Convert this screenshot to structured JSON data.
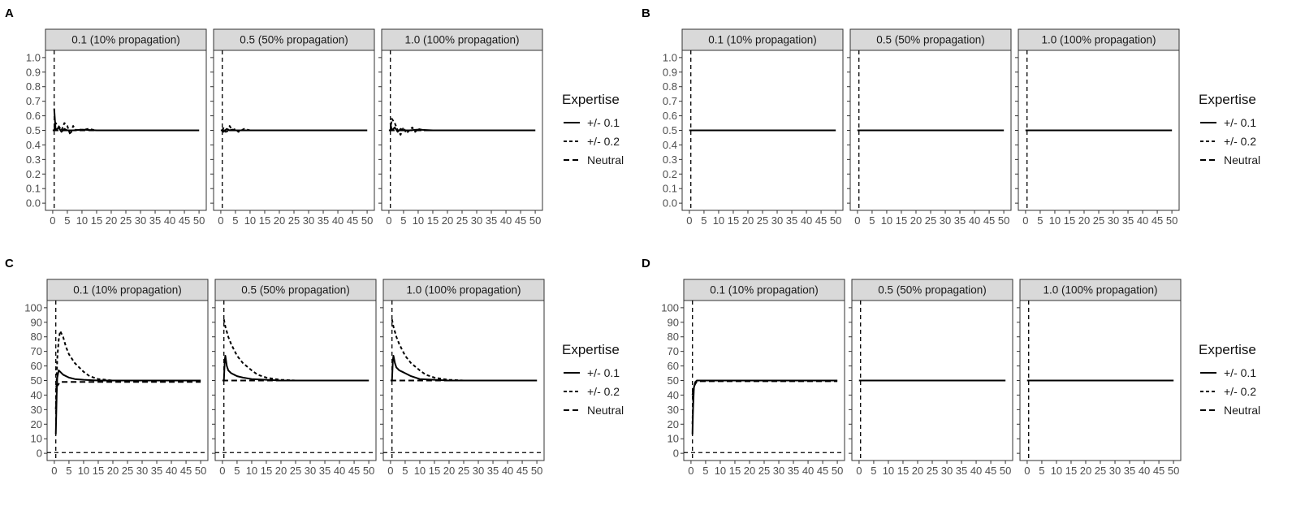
{
  "facet_strips": [
    "0.1 (10% propagation)",
    "0.5 (50% propagation)",
    "1.0 (100% propagation)"
  ],
  "legend": {
    "title": "Expertise",
    "entries": [
      {
        "label": "+/- 0.1",
        "linetype": "solid"
      },
      {
        "label": "+/- 0.2",
        "linetype": "dotted"
      },
      {
        "label": "Neutral",
        "linetype": "dashed"
      }
    ]
  },
  "colors": {
    "line": "#000000",
    "strip_fill": "#d9d9d9",
    "panel_border": "#333333",
    "tick_text": "#4d4d4d"
  },
  "chart_data": [
    {
      "id": "A",
      "type": "line",
      "panel_label": "A",
      "xlim": [
        0,
        50
      ],
      "ylim": [
        0,
        1.0
      ],
      "xticks": [
        0,
        5,
        10,
        15,
        20,
        25,
        30,
        35,
        40,
        45,
        50
      ],
      "yticks": [
        0.0,
        0.1,
        0.2,
        0.3,
        0.4,
        0.5,
        0.6,
        0.7,
        0.8,
        0.9,
        1.0
      ],
      "ytick_decimals": 1,
      "facets": [
        {
          "strip": "0.1 (10% propagation)",
          "vline_x": 0.5,
          "hline_y": null,
          "series": [
            {
              "name": "+/- 0.1",
              "linetype": "solid",
              "x": [
                0.5,
                1,
                2,
                3,
                4,
                5,
                7,
                10,
                15,
                20,
                30,
                40,
                50
              ],
              "y": [
                0.65,
                0.5,
                0.52,
                0.49,
                0.51,
                0.5,
                0.5,
                0.505,
                0.5,
                0.5,
                0.5,
                0.5,
                0.5
              ]
            },
            {
              "name": "+/- 0.2",
              "linetype": "dotted",
              "x": [
                0.5,
                1,
                2,
                3,
                4,
                5,
                6,
                7,
                8,
                9,
                10,
                12,
                15,
                20,
                30,
                40,
                50
              ],
              "y": [
                0.5,
                0.55,
                0.53,
                0.5,
                0.55,
                0.53,
                0.47,
                0.53,
                0.5,
                0.51,
                0.5,
                0.51,
                0.5,
                0.5,
                0.5,
                0.5,
                0.5
              ]
            },
            {
              "name": "Neutral",
              "linetype": "dashed",
              "x": [
                0,
                50
              ],
              "y": [
                0.5,
                0.5
              ]
            }
          ]
        },
        {
          "strip": "0.5 (50% propagation)",
          "vline_x": 0.5,
          "hline_y": null,
          "series": [
            {
              "name": "+/- 0.1",
              "linetype": "solid",
              "x": [
                0.5,
                1,
                2,
                3,
                4,
                5,
                7,
                10,
                20,
                30,
                40,
                50
              ],
              "y": [
                0.5,
                0.49,
                0.51,
                0.5,
                0.505,
                0.5,
                0.5,
                0.5,
                0.5,
                0.5,
                0.5,
                0.5
              ]
            },
            {
              "name": "+/- 0.2",
              "linetype": "dotted",
              "x": [
                0.5,
                1,
                2,
                3,
                4,
                5,
                6,
                7,
                8,
                10,
                15,
                20,
                30,
                40,
                50
              ],
              "y": [
                0.5,
                0.52,
                0.48,
                0.53,
                0.5,
                0.51,
                0.49,
                0.5,
                0.51,
                0.5,
                0.5,
                0.5,
                0.5,
                0.5,
                0.5
              ]
            },
            {
              "name": "Neutral",
              "linetype": "dashed",
              "x": [
                0,
                50
              ],
              "y": [
                0.5,
                0.5
              ]
            }
          ]
        },
        {
          "strip": "1.0 (100% propagation)",
          "vline_x": 0.5,
          "hline_y": null,
          "series": [
            {
              "name": "+/- 0.1",
              "linetype": "solid",
              "x": [
                0.5,
                1,
                2,
                3,
                4,
                5,
                7,
                10,
                15,
                20,
                30,
                40,
                50
              ],
              "y": [
                0.55,
                0.5,
                0.52,
                0.49,
                0.51,
                0.5,
                0.5,
                0.505,
                0.5,
                0.5,
                0.5,
                0.5,
                0.5
              ]
            },
            {
              "name": "+/- 0.2",
              "linetype": "dotted",
              "x": [
                0.5,
                1,
                2,
                3,
                4,
                5,
                6,
                7,
                8,
                9,
                10,
                12,
                15,
                20,
                30,
                40,
                50
              ],
              "y": [
                0.5,
                0.58,
                0.55,
                0.5,
                0.47,
                0.52,
                0.48,
                0.5,
                0.52,
                0.49,
                0.51,
                0.5,
                0.5,
                0.5,
                0.5,
                0.5,
                0.5
              ]
            },
            {
              "name": "Neutral",
              "linetype": "dashed",
              "x": [
                0,
                50
              ],
              "y": [
                0.5,
                0.5
              ]
            }
          ]
        }
      ]
    },
    {
      "id": "B",
      "type": "line",
      "panel_label": "B",
      "xlim": [
        0,
        50
      ],
      "ylim": [
        0,
        1.0
      ],
      "xticks": [
        0,
        5,
        10,
        15,
        20,
        25,
        30,
        35,
        40,
        45,
        50
      ],
      "yticks": [
        0.0,
        0.1,
        0.2,
        0.3,
        0.4,
        0.5,
        0.6,
        0.7,
        0.8,
        0.9,
        1.0
      ],
      "ytick_decimals": 1,
      "facets": [
        {
          "strip": "0.1 (10% propagation)",
          "vline_x": 0.5,
          "hline_y": null,
          "series": [
            {
              "name": "+/- 0.1",
              "linetype": "solid",
              "x": [
                0,
                50
              ],
              "y": [
                0.5,
                0.5
              ]
            },
            {
              "name": "+/- 0.2",
              "linetype": "dotted",
              "x": [
                0,
                50
              ],
              "y": [
                0.5,
                0.5
              ]
            },
            {
              "name": "Neutral",
              "linetype": "dashed",
              "x": [
                0,
                50
              ],
              "y": [
                0.5,
                0.5
              ]
            }
          ]
        },
        {
          "strip": "0.5 (50% propagation)",
          "vline_x": 0.5,
          "hline_y": null,
          "series": [
            {
              "name": "+/- 0.1",
              "linetype": "solid",
              "x": [
                0,
                50
              ],
              "y": [
                0.5,
                0.5
              ]
            },
            {
              "name": "+/- 0.2",
              "linetype": "dotted",
              "x": [
                0,
                50
              ],
              "y": [
                0.5,
                0.5
              ]
            },
            {
              "name": "Neutral",
              "linetype": "dashed",
              "x": [
                0,
                50
              ],
              "y": [
                0.5,
                0.5
              ]
            }
          ]
        },
        {
          "strip": "1.0 (100% propagation)",
          "vline_x": 0.5,
          "hline_y": null,
          "series": [
            {
              "name": "+/- 0.1",
              "linetype": "solid",
              "x": [
                0,
                50
              ],
              "y": [
                0.5,
                0.5
              ]
            },
            {
              "name": "+/- 0.2",
              "linetype": "dotted",
              "x": [
                0,
                50
              ],
              "y": [
                0.5,
                0.5
              ]
            },
            {
              "name": "Neutral",
              "linetype": "dashed",
              "x": [
                0,
                50
              ],
              "y": [
                0.5,
                0.5
              ]
            }
          ]
        }
      ]
    },
    {
      "id": "C",
      "type": "line",
      "panel_label": "C",
      "xlim": [
        0,
        50
      ],
      "ylim": [
        0,
        100
      ],
      "xticks": [
        0,
        5,
        10,
        15,
        20,
        25,
        30,
        35,
        40,
        45,
        50
      ],
      "yticks": [
        0,
        10,
        20,
        30,
        40,
        50,
        60,
        70,
        80,
        90,
        100
      ],
      "ytick_decimals": 0,
      "facets": [
        {
          "strip": "0.1 (10% propagation)",
          "vline_x": 0.5,
          "hline_y": 0.5,
          "series": [
            {
              "name": "+/- 0.1",
              "linetype": "solid",
              "x": [
                0.5,
                0.8,
                1,
                1.5,
                2,
                3,
                4,
                5,
                7,
                10,
                15,
                20,
                50
              ],
              "y": [
                13,
                40,
                52,
                57,
                56,
                54,
                53,
                52,
                51,
                50.5,
                50,
                50,
                50
              ]
            },
            {
              "name": "+/- 0.2",
              "linetype": "dotted",
              "x": [
                0.5,
                1,
                1.5,
                2,
                3,
                4,
                5,
                7,
                10,
                12,
                15,
                20,
                25,
                50
              ],
              "y": [
                30,
                65,
                78,
                84,
                80,
                73,
                68,
                62,
                56,
                53,
                51,
                50,
                50,
                50
              ]
            },
            {
              "name": "Neutral",
              "linetype": "dashed",
              "x": [
                0.5,
                2,
                50
              ],
              "y": [
                45,
                49,
                49
              ]
            }
          ]
        },
        {
          "strip": "0.5 (50% propagation)",
          "vline_x": 0.5,
          "hline_y": 0.5,
          "series": [
            {
              "name": "+/- 0.1",
              "linetype": "solid",
              "x": [
                0.5,
                0.8,
                1,
                1.5,
                2,
                3,
                4,
                5,
                7,
                10,
                15,
                20,
                50
              ],
              "y": [
                50,
                64,
                67,
                60,
                57,
                55,
                54,
                53,
                52,
                51,
                50.5,
                50,
                50
              ]
            },
            {
              "name": "+/- 0.2",
              "linetype": "dotted",
              "x": [
                0.5,
                1,
                2,
                3,
                4,
                5,
                7,
                10,
                12,
                15,
                18,
                20,
                25,
                50
              ],
              "y": [
                92,
                87,
                80,
                75,
                71,
                67,
                62,
                57,
                54,
                52,
                51,
                50.5,
                50,
                50
              ]
            },
            {
              "name": "Neutral",
              "linetype": "dashed",
              "x": [
                0,
                50
              ],
              "y": [
                50,
                50
              ]
            }
          ]
        },
        {
          "strip": "1.0 (100% propagation)",
          "vline_x": 0.5,
          "hline_y": 0.5,
          "series": [
            {
              "name": "+/- 0.1",
              "linetype": "solid",
              "x": [
                0.5,
                0.8,
                1,
                1.5,
                2,
                3,
                4,
                5,
                7,
                10,
                15,
                20,
                50
              ],
              "y": [
                50,
                64,
                67,
                62,
                59,
                57,
                56,
                55,
                53,
                51,
                50.5,
                50,
                50
              ]
            },
            {
              "name": "+/- 0.2",
              "linetype": "dotted",
              "x": [
                0.5,
                1,
                2,
                3,
                4,
                5,
                7,
                10,
                12,
                15,
                18,
                20,
                25,
                50
              ],
              "y": [
                92,
                87,
                80,
                75,
                71,
                67,
                62,
                57,
                54,
                52,
                51,
                50.5,
                50,
                50
              ]
            },
            {
              "name": "Neutral",
              "linetype": "dashed",
              "x": [
                0,
                50
              ],
              "y": [
                50,
                50
              ]
            }
          ]
        }
      ]
    },
    {
      "id": "D",
      "type": "line",
      "panel_label": "D",
      "xlim": [
        0,
        50
      ],
      "ylim": [
        0,
        100
      ],
      "xticks": [
        0,
        5,
        10,
        15,
        20,
        25,
        30,
        35,
        40,
        45,
        50
      ],
      "yticks": [
        0,
        10,
        20,
        30,
        40,
        50,
        60,
        70,
        80,
        90,
        100
      ],
      "ytick_decimals": 0,
      "facets": [
        {
          "strip": "0.1 (10% propagation)",
          "vline_x": 0.5,
          "hline_y": 0.5,
          "series": [
            {
              "name": "+/- 0.1",
              "linetype": "solid",
              "x": [
                0.5,
                0.7,
                1,
                1.5,
                2,
                3,
                50
              ],
              "y": [
                13,
                30,
                45,
                49,
                50,
                50,
                50
              ]
            },
            {
              "name": "+/- 0.2",
              "linetype": "dotted",
              "x": [
                0.5,
                0.7,
                1,
                1.5,
                2,
                3,
                50
              ],
              "y": [
                20,
                35,
                46,
                49,
                50,
                50,
                50
              ]
            },
            {
              "name": "Neutral",
              "linetype": "dashed",
              "x": [
                0.5,
                1,
                2,
                50
              ],
              "y": [
                40,
                46,
                49.5,
                49.5
              ]
            }
          ]
        },
        {
          "strip": "0.5 (50% propagation)",
          "vline_x": 0.5,
          "hline_y": null,
          "series": [
            {
              "name": "+/- 0.1",
              "linetype": "solid",
              "x": [
                0,
                50
              ],
              "y": [
                50,
                50
              ]
            },
            {
              "name": "+/- 0.2",
              "linetype": "dotted",
              "x": [
                0,
                50
              ],
              "y": [
                50,
                50
              ]
            },
            {
              "name": "Neutral",
              "linetype": "dashed",
              "x": [
                0,
                50
              ],
              "y": [
                50,
                50
              ]
            }
          ]
        },
        {
          "strip": "1.0 (100% propagation)",
          "vline_x": 0.5,
          "hline_y": null,
          "series": [
            {
              "name": "+/- 0.1",
              "linetype": "solid",
              "x": [
                0,
                50
              ],
              "y": [
                50,
                50
              ]
            },
            {
              "name": "+/- 0.2",
              "linetype": "dotted",
              "x": [
                0,
                50
              ],
              "y": [
                50,
                50
              ]
            },
            {
              "name": "Neutral",
              "linetype": "dashed",
              "x": [
                0,
                50
              ],
              "y": [
                50,
                50
              ]
            }
          ]
        }
      ]
    }
  ]
}
